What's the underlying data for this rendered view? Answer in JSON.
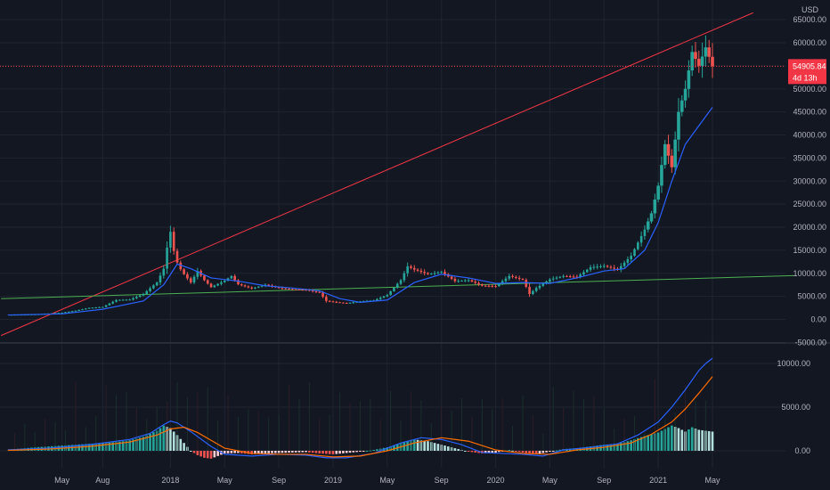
{
  "currency": "USD",
  "colors": {
    "background": "#131722",
    "grid": "#1f2430",
    "up": "#26a69a",
    "down": "#ef5350",
    "ma_blue": "#2962ff",
    "ma_orange": "#ff6d00",
    "trend_red": "#f23645",
    "trend_green": "#4caf50",
    "text": "#b2b5be"
  },
  "price_tag": {
    "value": "54905.84",
    "countdown": "4d 13h",
    "price": 54905.84
  },
  "x_labels": [
    {
      "label": "May",
      "month": 4
    },
    {
      "label": "Aug",
      "month": 7
    },
    {
      "label": "2018",
      "month": 12
    },
    {
      "label": "May",
      "month": 16
    },
    {
      "label": "Sep",
      "month": 20
    },
    {
      "label": "2019",
      "month": 24
    },
    {
      "label": "May",
      "month": 28
    },
    {
      "label": "Sep",
      "month": 32
    },
    {
      "label": "2020",
      "month": 36
    },
    {
      "label": "May",
      "month": 40
    },
    {
      "label": "Sep",
      "month": 44
    },
    {
      "label": "2021",
      "month": 48
    },
    {
      "label": "May",
      "month": 52
    }
  ],
  "chart_data": [
    {
      "type": "candlestick",
      "title": "",
      "x_unit": "months since Jan 2017",
      "y_axis": {
        "ticks": [
          "65000.00",
          "60000.00",
          "55000.00",
          "50000.00",
          "45000.00",
          "40000.00",
          "35000.00",
          "30000.00",
          "25000.00",
          "20000.00",
          "15000.00",
          "10000.00",
          "5000.00",
          "0.00",
          "-5000.00"
        ],
        "ylim": [
          -5000,
          65000
        ]
      },
      "close_series": [
        [
          0,
          1000
        ],
        [
          1,
          1050
        ],
        [
          2,
          1100
        ],
        [
          3,
          1250
        ],
        [
          4,
          1450
        ],
        [
          5,
          1900
        ],
        [
          6,
          2500
        ],
        [
          7,
          2700
        ],
        [
          8,
          4200
        ],
        [
          9,
          4300
        ],
        [
          10,
          5500
        ],
        [
          11,
          8000
        ],
        [
          11.5,
          11000
        ],
        [
          11.8,
          16500
        ],
        [
          12,
          19000
        ],
        [
          12.3,
          14000
        ],
        [
          12.6,
          11500
        ],
        [
          13,
          9800
        ],
        [
          13.5,
          8000
        ],
        [
          14,
          10500
        ],
        [
          14.5,
          8500
        ],
        [
          15,
          7000
        ],
        [
          16,
          8400
        ],
        [
          16.5,
          9400
        ],
        [
          17,
          7600
        ],
        [
          18,
          6700
        ],
        [
          19,
          7500
        ],
        [
          20,
          6800
        ],
        [
          21,
          6500
        ],
        [
          22,
          6400
        ],
        [
          23,
          5800
        ],
        [
          23.5,
          4000
        ],
        [
          24,
          3800
        ],
        [
          25,
          3500
        ],
        [
          26,
          3900
        ],
        [
          27,
          4100
        ],
        [
          28,
          5300
        ],
        [
          29,
          8500
        ],
        [
          29.5,
          11500
        ],
        [
          30,
          10800
        ],
        [
          31,
          9800
        ],
        [
          32,
          10300
        ],
        [
          33,
          8300
        ],
        [
          34,
          8500
        ],
        [
          35,
          7300
        ],
        [
          36,
          7200
        ],
        [
          37,
          9400
        ],
        [
          38,
          8600
        ],
        [
          38.5,
          5500
        ],
        [
          39,
          6800
        ],
        [
          40,
          8700
        ],
        [
          41,
          9400
        ],
        [
          42,
          9200
        ],
        [
          43,
          11300
        ],
        [
          44,
          11600
        ],
        [
          45,
          10800
        ],
        [
          46,
          13800
        ],
        [
          47,
          19500
        ],
        [
          47.5,
          23000
        ],
        [
          48,
          29000
        ],
        [
          48.5,
          38000
        ],
        [
          49,
          33000
        ],
        [
          49.5,
          45000
        ],
        [
          50,
          50000
        ],
        [
          50.5,
          58000
        ],
        [
          51,
          55000
        ],
        [
          51.5,
          59000
        ],
        [
          52,
          54905
        ]
      ],
      "moving_average": [
        [
          0,
          950
        ],
        [
          4,
          1200
        ],
        [
          7,
          2200
        ],
        [
          10,
          4000
        ],
        [
          11.5,
          7500
        ],
        [
          12.5,
          12000
        ],
        [
          13.5,
          11000
        ],
        [
          15,
          9000
        ],
        [
          17,
          8300
        ],
        [
          19,
          7300
        ],
        [
          21,
          6800
        ],
        [
          23,
          6200
        ],
        [
          24.5,
          4500
        ],
        [
          26,
          3700
        ],
        [
          28,
          4200
        ],
        [
          30,
          8000
        ],
        [
          32,
          9800
        ],
        [
          34,
          9000
        ],
        [
          36,
          7800
        ],
        [
          38,
          8000
        ],
        [
          40,
          7800
        ],
        [
          42,
          9000
        ],
        [
          44,
          10500
        ],
        [
          45.5,
          11000
        ],
        [
          47,
          15000
        ],
        [
          48,
          21000
        ],
        [
          49,
          30000
        ],
        [
          50,
          38000
        ],
        [
          51,
          42000
        ],
        [
          52,
          46000
        ]
      ],
      "trendlines": [
        {
          "color": "red",
          "from": [
            -0.5,
            -3500
          ],
          "to": [
            55,
            66500
          ]
        },
        {
          "color": "green",
          "from": [
            -0.5,
            4500
          ],
          "to": [
            58,
            9500
          ]
        }
      ],
      "last_price": 54905.84
    },
    {
      "type": "histogram+lines",
      "title": "",
      "y_axis": {
        "ticks": [
          "10000.00",
          "5000.00",
          "0.00"
        ],
        "ylim": [
          -2500,
          11000
        ]
      },
      "histogram": [
        [
          0,
          150
        ],
        [
          1,
          250
        ],
        [
          2,
          400
        ],
        [
          3,
          500
        ],
        [
          4,
          600
        ],
        [
          5,
          700
        ],
        [
          6,
          800
        ],
        [
          7,
          900
        ],
        [
          8,
          1000
        ],
        [
          9,
          1200
        ],
        [
          10,
          1600
        ],
        [
          11,
          2300
        ],
        [
          11.5,
          2900
        ],
        [
          12,
          2600
        ],
        [
          12.5,
          1800
        ],
        [
          13,
          900
        ],
        [
          13.5,
          0
        ],
        [
          14,
          -500
        ],
        [
          14.5,
          -800
        ],
        [
          15,
          -900
        ],
        [
          15.5,
          -600
        ],
        [
          16,
          -300
        ],
        [
          17,
          -250
        ],
        [
          18,
          -400
        ],
        [
          19,
          -300
        ],
        [
          20,
          -250
        ],
        [
          21,
          -200
        ],
        [
          22,
          -150
        ],
        [
          23,
          -300
        ],
        [
          24,
          -400
        ],
        [
          25,
          -250
        ],
        [
          26,
          -100
        ],
        [
          27,
          100
        ],
        [
          28,
          400
        ],
        [
          29,
          900
        ],
        [
          30,
          1300
        ],
        [
          31,
          1100
        ],
        [
          32,
          700
        ],
        [
          33,
          300
        ],
        [
          34,
          -100
        ],
        [
          35,
          -300
        ],
        [
          36,
          -200
        ],
        [
          37,
          100
        ],
        [
          38,
          -200
        ],
        [
          39,
          -400
        ],
        [
          40,
          -100
        ],
        [
          41,
          200
        ],
        [
          42,
          300
        ],
        [
          43,
          500
        ],
        [
          44,
          700
        ],
        [
          45,
          800
        ],
        [
          46,
          1200
        ],
        [
          47,
          1700
        ],
        [
          48,
          2100
        ],
        [
          48.5,
          2500
        ],
        [
          49,
          2900
        ],
        [
          49.5,
          2600
        ],
        [
          50,
          2200
        ],
        [
          50.5,
          2700
        ],
        [
          51,
          2400
        ],
        [
          51.5,
          2300
        ],
        [
          52,
          2200
        ]
      ],
      "fast_line": [
        [
          0,
          100
        ],
        [
          3,
          300
        ],
        [
          6,
          700
        ],
        [
          9,
          1300
        ],
        [
          10.5,
          2000
        ],
        [
          11.5,
          3000
        ],
        [
          12,
          3400
        ],
        [
          12.5,
          3200
        ],
        [
          13.5,
          2200
        ],
        [
          15,
          500
        ],
        [
          16,
          -400
        ],
        [
          18,
          -600
        ],
        [
          20,
          -400
        ],
        [
          22,
          -500
        ],
        [
          23.5,
          -800
        ],
        [
          25,
          -800
        ],
        [
          27,
          -300
        ],
        [
          29,
          900
        ],
        [
          30.5,
          1500
        ],
        [
          32,
          1300
        ],
        [
          33.5,
          700
        ],
        [
          35,
          -200
        ],
        [
          36.5,
          -300
        ],
        [
          38,
          -400
        ],
        [
          39.5,
          -600
        ],
        [
          41,
          100
        ],
        [
          43,
          400
        ],
        [
          45,
          800
        ],
        [
          46.5,
          1800
        ],
        [
          48,
          3300
        ],
        [
          49,
          5000
        ],
        [
          50,
          7000
        ],
        [
          51,
          9200
        ],
        [
          51.5,
          10000
        ],
        [
          52,
          10600
        ]
      ],
      "slow_line": [
        [
          0,
          50
        ],
        [
          3,
          200
        ],
        [
          6,
          500
        ],
        [
          9,
          1000
        ],
        [
          11,
          1800
        ],
        [
          12,
          2500
        ],
        [
          13,
          2700
        ],
        [
          14,
          2100
        ],
        [
          15,
          1200
        ],
        [
          16,
          300
        ],
        [
          18,
          -300
        ],
        [
          20,
          -400
        ],
        [
          22,
          -400
        ],
        [
          24,
          -700
        ],
        [
          26,
          -600
        ],
        [
          28,
          0
        ],
        [
          30,
          900
        ],
        [
          32,
          1500
        ],
        [
          34,
          1100
        ],
        [
          36,
          100
        ],
        [
          38,
          -300
        ],
        [
          40,
          -400
        ],
        [
          42,
          100
        ],
        [
          44,
          400
        ],
        [
          46,
          900
        ],
        [
          47.5,
          1900
        ],
        [
          49,
          3300
        ],
        [
          50,
          4800
        ],
        [
          51,
          6600
        ],
        [
          52,
          8500
        ]
      ]
    }
  ]
}
